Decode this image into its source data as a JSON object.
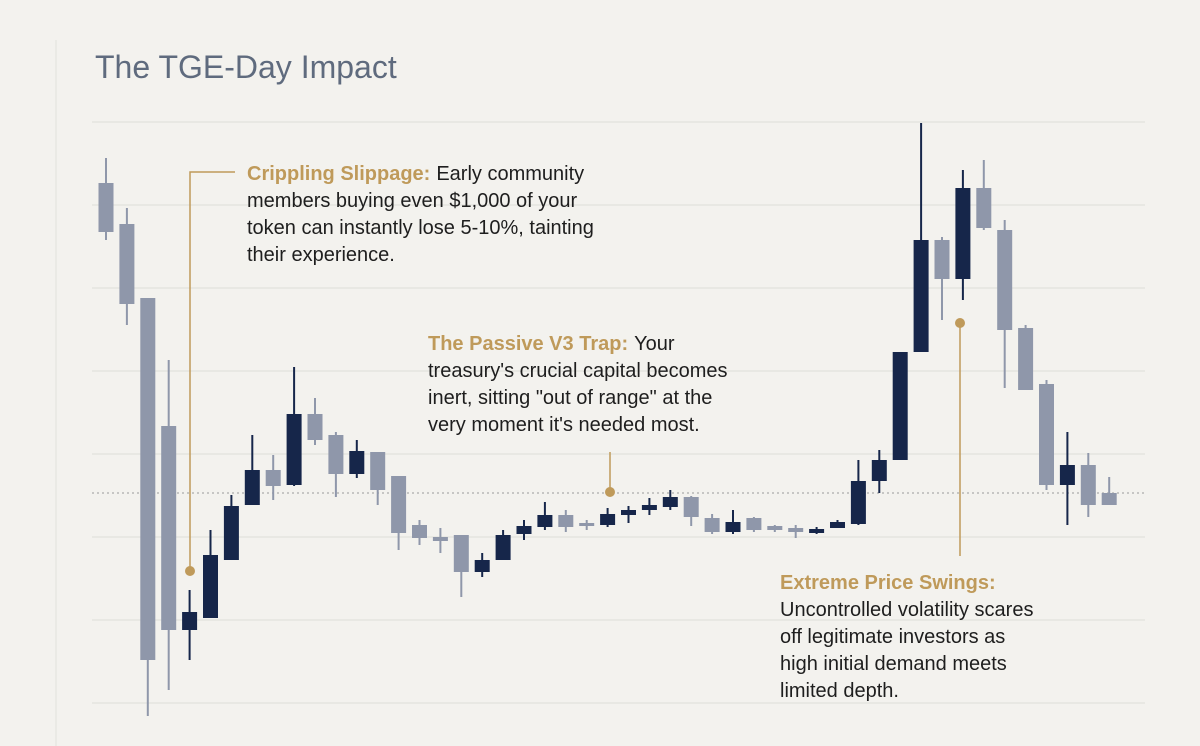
{
  "chart_data": {
    "type": "candlestick",
    "title": "The TGE-Day Impact",
    "up_color": "#16264a",
    "down_color": "#8f97aa",
    "ylim": [
      0,
      746
    ],
    "yticks": [
      43,
      126,
      209,
      292,
      375,
      458,
      541,
      624
    ],
    "grid": true,
    "reference_line": 253,
    "open": [
      563,
      522,
      448,
      320,
      116,
      128,
      186,
      241,
      276,
      261,
      332,
      311,
      272,
      294,
      270,
      221,
      209,
      211,
      174,
      186,
      212,
      219,
      231,
      223,
      221,
      231,
      236,
      239,
      249,
      228,
      214,
      228,
      220,
      218,
      213,
      218,
      222,
      265,
      286,
      394,
      506,
      467,
      558,
      516,
      418,
      362,
      261,
      281,
      253
    ],
    "high": [
      588,
      538,
      448,
      386,
      156,
      216,
      251,
      311,
      291,
      379,
      348,
      314,
      306,
      294,
      270,
      226,
      218,
      211,
      193,
      216,
      226,
      244,
      236,
      226,
      238,
      240,
      248,
      256,
      250,
      232,
      236,
      229,
      221,
      221,
      219,
      226,
      286,
      296,
      394,
      623,
      509,
      576,
      586,
      526,
      421,
      366,
      314,
      293,
      269
    ],
    "low": [
      506,
      421,
      30,
      56,
      86,
      128,
      186,
      241,
      246,
      260,
      301,
      249,
      268,
      241,
      196,
      201,
      193,
      149,
      169,
      186,
      206,
      216,
      214,
      216,
      219,
      223,
      231,
      236,
      220,
      212,
      212,
      214,
      214,
      208,
      212,
      218,
      221,
      253,
      286,
      394,
      426,
      446,
      516,
      358,
      356,
      256,
      221,
      229,
      241
    ],
    "close": [
      514,
      442,
      86,
      116,
      134,
      191,
      240,
      276,
      260,
      332,
      306,
      272,
      295,
      256,
      213,
      208,
      205,
      174,
      186,
      211,
      220,
      231,
      219,
      220,
      232,
      236,
      241,
      249,
      229,
      214,
      224,
      216,
      216,
      214,
      217,
      224,
      265,
      286,
      394,
      506,
      467,
      558,
      518,
      416,
      356,
      261,
      281,
      241,
      241
    ],
    "annotations": [
      {
        "title": "Crippling Slippage:",
        "lines": [
          "Early community",
          "members buying even $1,000 of your",
          "token can instantly lose 5-10%, tainting",
          "their experience."
        ]
      },
      {
        "title": "The Passive V3 Trap:",
        "lines": [
          "Your",
          "treasury's crucial capital becomes",
          "inert, sitting \"out of range\" at the",
          "very moment it's needed most."
        ]
      },
      {
        "title": "Extreme Price Swings:",
        "lines": [
          "Uncontrolled volatility scares",
          "off legitimate investors as",
          "high initial demand meets",
          "limited depth."
        ]
      }
    ]
  }
}
